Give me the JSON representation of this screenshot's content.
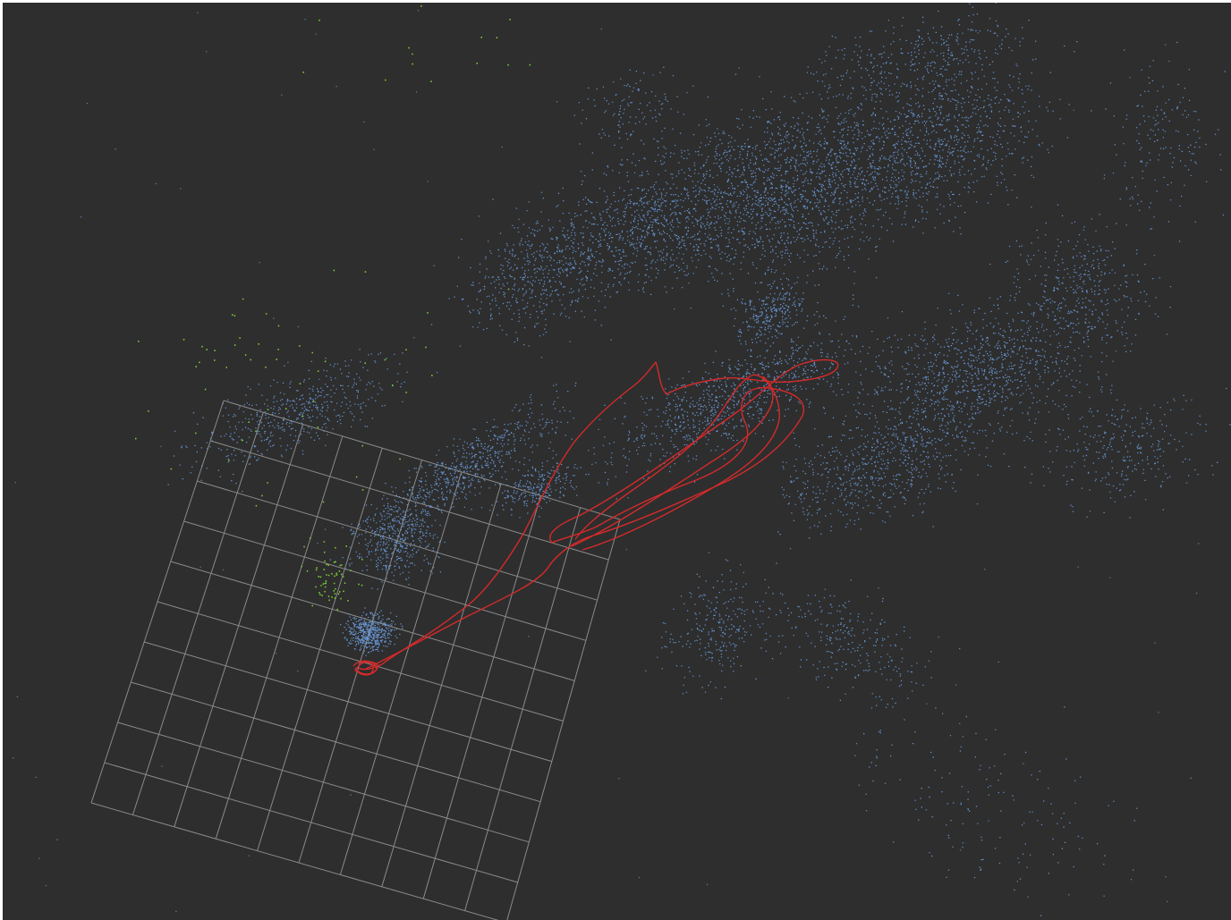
{
  "viewer": {
    "background_color": "#2e2e2e",
    "grid": {
      "rows": 10,
      "cols": 10,
      "color": "#8a8a8a"
    },
    "point_cloud": {
      "map_point_color": "#6d9fe0",
      "reference_point_color": "#7ecf35"
    },
    "trajectory": {
      "color": "#d42a2a"
    }
  }
}
